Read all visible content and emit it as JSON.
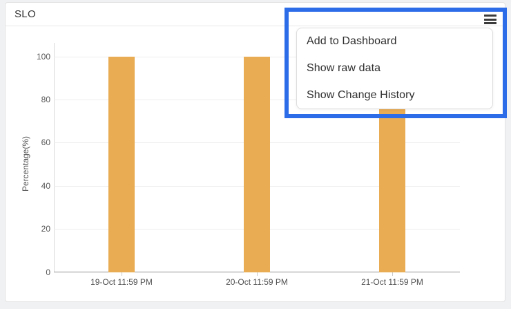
{
  "page": {
    "background": "#f0f1f2"
  },
  "widget": {
    "title": "SLO",
    "menu_icon": "hamburger-menu-icon"
  },
  "menu": {
    "items": [
      "Add to Dashboard",
      "Show raw data",
      "Show Change History"
    ]
  },
  "colors": {
    "bar": "#e9ac53",
    "highlight_box": "#2c6ce8",
    "axis_text": "#545454",
    "menu_text": "#2e2e2e"
  },
  "chart_data": {
    "type": "bar",
    "title": "SLO",
    "categories": [
      "19-Oct 11:59 PM",
      "20-Oct 11:59 PM",
      "21-Oct 11:59 PM"
    ],
    "values": [
      100,
      100,
      100
    ],
    "xlabel": "",
    "ylabel": "Percentage(%)",
    "yticks": [
      0,
      20,
      40,
      60,
      80,
      100
    ],
    "ylim": [
      0,
      105
    ],
    "grid": true,
    "legend": "none",
    "bar_color": "#e9ac53"
  }
}
